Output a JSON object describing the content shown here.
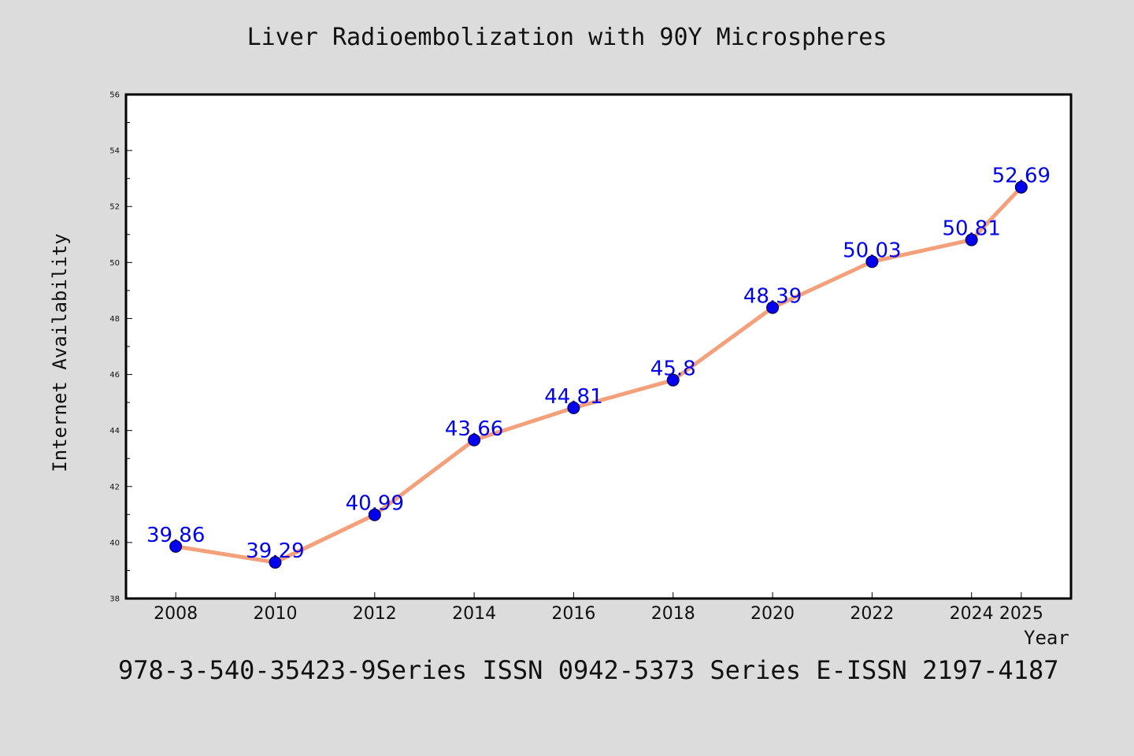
{
  "chart_data": {
    "type": "line",
    "title": "Liver Radioembolization with 90Y Microspheres",
    "xlabel": "Year",
    "ylabel": "Internet Availability",
    "x": [
      2008,
      2010,
      2012,
      2014,
      2016,
      2018,
      2020,
      2022,
      2024,
      2025
    ],
    "x_tick_labels": [
      "2008",
      "2010",
      "2012",
      "2014",
      "2016",
      "2018",
      "2020",
      "2022",
      "2024",
      "2025"
    ],
    "series": [
      {
        "values": [
          39.86,
          39.29,
          40.99,
          43.66,
          44.81,
          45.8,
          48.39,
          50.03,
          50.81,
          52.69
        ],
        "data_labels": [
          "39.86",
          "39.29",
          "40.99",
          "43.66",
          "44.81",
          "45.8",
          "48.39",
          "50.03",
          "50.81",
          "52.69"
        ],
        "line_color": "#f4a07a",
        "marker_color": "#0000ee"
      }
    ],
    "ylim": [
      38,
      56
    ],
    "y_ticks": [
      38,
      40,
      42,
      44,
      46,
      48,
      50,
      52,
      54,
      56
    ],
    "y_tick_labels": [
      "38",
      "40",
      "42",
      "44",
      "46",
      "48",
      "50",
      "52",
      "54",
      "56"
    ],
    "grid": false,
    "legend": "none"
  },
  "footer": "978-3-540-35423-9Series ISSN 0942-5373 Series E-ISSN 2197-4187",
  "colors": {
    "background": "#dcdcdc",
    "plot_background": "#ffffff",
    "line": "#f4a07a",
    "marker": "#0000ee",
    "label": "#0000ee"
  }
}
